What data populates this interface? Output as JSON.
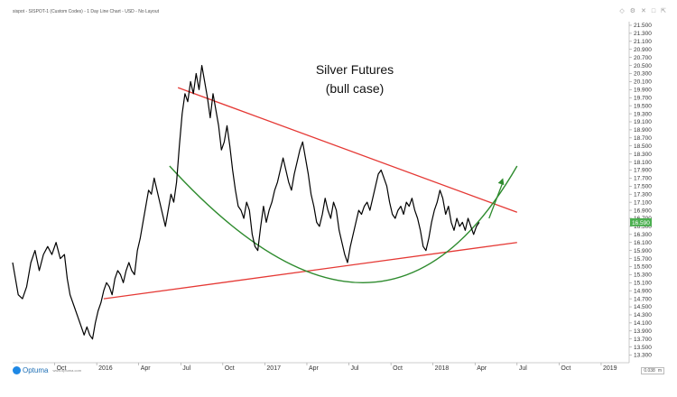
{
  "header": {
    "title": "sispot - SISPOT-1 (Custom Codes) - 1 Day Line Chart - USD - No Layout"
  },
  "window_icons": [
    "diamond-icon",
    "gear-icon",
    "close-icon",
    "maximize-icon",
    "expand-icon"
  ],
  "logo": {
    "name": "Optuma",
    "sub": "www.optuma.com"
  },
  "zoom_box": {
    "value": "0.038",
    "unit": "m"
  },
  "chart_data": {
    "type": "line",
    "title": "Silver Futures",
    "subtitle": "(bull case)",
    "x_ticks": [
      {
        "label": "Oct",
        "m": 0
      },
      {
        "label": "2016",
        "m": 3
      },
      {
        "label": "Apr",
        "m": 6
      },
      {
        "label": "Jul",
        "m": 9
      },
      {
        "label": "Oct",
        "m": 12
      },
      {
        "label": "2017",
        "m": 15
      },
      {
        "label": "Apr",
        "m": 18
      },
      {
        "label": "Jul",
        "m": 21
      },
      {
        "label": "Oct",
        "m": 24
      },
      {
        "label": "2018",
        "m": 27
      },
      {
        "label": "Apr",
        "m": 30
      },
      {
        "label": "Jul",
        "m": 33
      },
      {
        "label": "Oct",
        "m": 36
      },
      {
        "label": "2019",
        "m": 39
      }
    ],
    "y_ticks": [
      "13.300",
      "13.500",
      "13.700",
      "13.900",
      "14.100",
      "14.300",
      "14.500",
      "14.700",
      "14.900",
      "15.100",
      "15.300",
      "15.500",
      "15.700",
      "15.900",
      "16.100",
      "16.300",
      "16.500",
      "16.700",
      "16.900",
      "17.100",
      "17.300",
      "17.500",
      "17.700",
      "17.900",
      "18.100",
      "18.300",
      "18.500",
      "18.700",
      "18.900",
      "19.100",
      "19.300",
      "19.500",
      "19.700",
      "19.900",
      "20.100",
      "20.300",
      "20.500",
      "20.700",
      "20.900",
      "21.100",
      "21.300",
      "21.500"
    ],
    "ylim": [
      13.2,
      21.5
    ],
    "xlim_months": [
      -3,
      41
    ],
    "last_value": "16.590",
    "series": [
      {
        "color": "#000000",
        "points": [
          [
            -3.0,
            15.6
          ],
          [
            -2.8,
            15.2
          ],
          [
            -2.6,
            14.8
          ],
          [
            -2.3,
            14.7
          ],
          [
            -2.0,
            15.0
          ],
          [
            -1.7,
            15.6
          ],
          [
            -1.4,
            15.9
          ],
          [
            -1.1,
            15.4
          ],
          [
            -0.8,
            15.8
          ],
          [
            -0.5,
            16.0
          ],
          [
            -0.2,
            15.8
          ],
          [
            0.1,
            16.1
          ],
          [
            0.4,
            15.7
          ],
          [
            0.7,
            15.8
          ],
          [
            0.9,
            15.2
          ],
          [
            1.1,
            14.8
          ],
          [
            1.4,
            14.5
          ],
          [
            1.7,
            14.2
          ],
          [
            1.9,
            14.0
          ],
          [
            2.1,
            13.8
          ],
          [
            2.3,
            14.0
          ],
          [
            2.5,
            13.8
          ],
          [
            2.7,
            13.7
          ],
          [
            2.9,
            14.1
          ],
          [
            3.1,
            14.4
          ],
          [
            3.3,
            14.6
          ],
          [
            3.5,
            14.9
          ],
          [
            3.7,
            15.1
          ],
          [
            3.9,
            15.0
          ],
          [
            4.1,
            14.8
          ],
          [
            4.3,
            15.2
          ],
          [
            4.5,
            15.4
          ],
          [
            4.7,
            15.3
          ],
          [
            4.9,
            15.1
          ],
          [
            5.1,
            15.4
          ],
          [
            5.3,
            15.6
          ],
          [
            5.5,
            15.4
          ],
          [
            5.7,
            15.3
          ],
          [
            5.9,
            15.9
          ],
          [
            6.1,
            16.2
          ],
          [
            6.3,
            16.6
          ],
          [
            6.5,
            17.0
          ],
          [
            6.7,
            17.4
          ],
          [
            6.9,
            17.3
          ],
          [
            7.1,
            17.7
          ],
          [
            7.3,
            17.4
          ],
          [
            7.5,
            17.1
          ],
          [
            7.7,
            16.8
          ],
          [
            7.9,
            16.5
          ],
          [
            8.1,
            16.9
          ],
          [
            8.3,
            17.3
          ],
          [
            8.5,
            17.1
          ],
          [
            8.7,
            17.6
          ],
          [
            8.9,
            18.5
          ],
          [
            9.1,
            19.3
          ],
          [
            9.3,
            19.8
          ],
          [
            9.5,
            19.6
          ],
          [
            9.7,
            20.1
          ],
          [
            9.9,
            19.8
          ],
          [
            10.1,
            20.3
          ],
          [
            10.3,
            19.9
          ],
          [
            10.5,
            20.5
          ],
          [
            10.7,
            20.1
          ],
          [
            10.9,
            19.7
          ],
          [
            11.1,
            19.2
          ],
          [
            11.3,
            19.8
          ],
          [
            11.5,
            19.4
          ],
          [
            11.7,
            19.0
          ],
          [
            11.9,
            18.4
          ],
          [
            12.1,
            18.6
          ],
          [
            12.3,
            19.0
          ],
          [
            12.5,
            18.5
          ],
          [
            12.7,
            17.9
          ],
          [
            12.9,
            17.4
          ],
          [
            13.1,
            17.0
          ],
          [
            13.3,
            16.9
          ],
          [
            13.5,
            16.7
          ],
          [
            13.7,
            17.1
          ],
          [
            13.9,
            16.9
          ],
          [
            14.1,
            16.3
          ],
          [
            14.3,
            16.0
          ],
          [
            14.5,
            15.9
          ],
          [
            14.7,
            16.5
          ],
          [
            14.9,
            17.0
          ],
          [
            15.1,
            16.6
          ],
          [
            15.3,
            16.9
          ],
          [
            15.5,
            17.1
          ],
          [
            15.7,
            17.4
          ],
          [
            15.9,
            17.6
          ],
          [
            16.1,
            17.9
          ],
          [
            16.3,
            18.2
          ],
          [
            16.5,
            17.9
          ],
          [
            16.7,
            17.6
          ],
          [
            16.9,
            17.4
          ],
          [
            17.1,
            17.8
          ],
          [
            17.3,
            18.1
          ],
          [
            17.5,
            18.4
          ],
          [
            17.7,
            18.6
          ],
          [
            17.9,
            18.2
          ],
          [
            18.1,
            17.8
          ],
          [
            18.3,
            17.3
          ],
          [
            18.5,
            17.0
          ],
          [
            18.7,
            16.6
          ],
          [
            18.9,
            16.5
          ],
          [
            19.1,
            16.8
          ],
          [
            19.3,
            17.2
          ],
          [
            19.5,
            16.9
          ],
          [
            19.7,
            16.7
          ],
          [
            19.9,
            17.1
          ],
          [
            20.1,
            16.9
          ],
          [
            20.3,
            16.4
          ],
          [
            20.5,
            16.1
          ],
          [
            20.7,
            15.8
          ],
          [
            20.9,
            15.6
          ],
          [
            21.1,
            16.0
          ],
          [
            21.3,
            16.3
          ],
          [
            21.5,
            16.6
          ],
          [
            21.7,
            16.9
          ],
          [
            21.9,
            16.8
          ],
          [
            22.1,
            17.0
          ],
          [
            22.3,
            17.1
          ],
          [
            22.5,
            16.9
          ],
          [
            22.7,
            17.2
          ],
          [
            22.9,
            17.5
          ],
          [
            23.1,
            17.8
          ],
          [
            23.3,
            17.9
          ],
          [
            23.5,
            17.7
          ],
          [
            23.7,
            17.5
          ],
          [
            23.9,
            17.1
          ],
          [
            24.1,
            16.8
          ],
          [
            24.3,
            16.7
          ],
          [
            24.5,
            16.9
          ],
          [
            24.7,
            17.0
          ],
          [
            24.9,
            16.8
          ],
          [
            25.1,
            17.1
          ],
          [
            25.3,
            17.0
          ],
          [
            25.5,
            17.2
          ],
          [
            25.7,
            16.9
          ],
          [
            25.9,
            16.7
          ],
          [
            26.1,
            16.4
          ],
          [
            26.3,
            16.0
          ],
          [
            26.5,
            15.9
          ],
          [
            26.7,
            16.2
          ],
          [
            26.9,
            16.6
          ],
          [
            27.1,
            16.9
          ],
          [
            27.3,
            17.1
          ],
          [
            27.5,
            17.4
          ],
          [
            27.7,
            17.2
          ],
          [
            27.9,
            16.8
          ],
          [
            28.1,
            17.0
          ],
          [
            28.3,
            16.6
          ],
          [
            28.5,
            16.4
          ],
          [
            28.7,
            16.7
          ],
          [
            28.9,
            16.5
          ],
          [
            29.1,
            16.6
          ],
          [
            29.3,
            16.4
          ],
          [
            29.5,
            16.7
          ],
          [
            29.7,
            16.5
          ],
          [
            29.9,
            16.3
          ],
          [
            30.1,
            16.5
          ],
          [
            30.3,
            16.6
          ]
        ]
      }
    ],
    "annotations": {
      "resistance_line": {
        "color": "#e53935",
        "from": [
          8.8,
          19.95
        ],
        "to": [
          33.0,
          16.85
        ]
      },
      "support_line": {
        "color": "#e53935",
        "from": [
          3.5,
          14.7
        ],
        "to": [
          33.0,
          16.1
        ]
      },
      "arc": {
        "color": "#2e8b2e",
        "from": [
          8.2,
          18.0
        ],
        "through": [
          22.0,
          15.1
        ],
        "to": [
          33.0,
          18.0
        ]
      },
      "arrow": {
        "color": "#2e8b2e",
        "from": [
          31.0,
          16.7
        ],
        "to": [
          32.0,
          17.7
        ]
      }
    }
  }
}
